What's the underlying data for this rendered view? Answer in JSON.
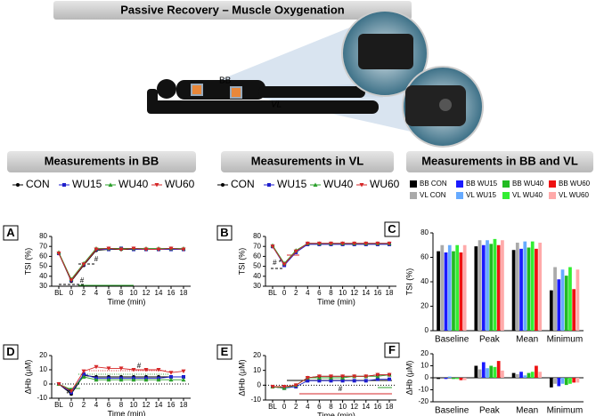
{
  "header": {
    "title": "Passive Recovery – Muscle Oxygenation",
    "bb_label": "BB",
    "vl_label": "VL",
    "sections": [
      "Measurements in BB",
      "Measurements in VL",
      "Measurements in BB and VL"
    ]
  },
  "chart_data": [
    {
      "type": "line",
      "panel": "A",
      "ylabel": "TSI (%)",
      "xlabel": "Time (min)",
      "categories": [
        "BL",
        "0",
        "2",
        "4",
        "6",
        "8",
        "10",
        "12",
        "14",
        "16",
        "18"
      ],
      "ylim": [
        30,
        80
      ],
      "yticks": [
        30,
        40,
        50,
        60,
        70,
        80
      ],
      "annotations": [
        "#",
        "#"
      ],
      "series": [
        {
          "name": "CON",
          "color": "#000000",
          "values": [
            63,
            35,
            51,
            66,
            67,
            67,
            67,
            67,
            67,
            67,
            67
          ]
        },
        {
          "name": "WU15",
          "color": "#1f1fcc",
          "values": [
            63,
            36,
            52,
            67,
            67,
            68,
            67,
            67,
            67,
            67,
            67
          ]
        },
        {
          "name": "WU40",
          "color": "#2ca02c",
          "values": [
            64,
            37,
            53,
            68,
            68,
            68,
            68,
            68,
            68,
            68,
            68
          ]
        },
        {
          "name": "WU60",
          "color": "#d62728",
          "values": [
            63,
            36,
            52,
            67,
            68,
            67,
            68,
            67,
            67,
            68,
            67
          ]
        }
      ]
    },
    {
      "type": "line",
      "panel": "B",
      "ylabel": "TSI (%)",
      "xlabel": "Time (min)",
      "categories": [
        "BL",
        "0",
        "2",
        "4",
        "6",
        "8",
        "10",
        "12",
        "14",
        "16",
        "18"
      ],
      "ylim": [
        30,
        80
      ],
      "yticks": [
        30,
        40,
        50,
        60,
        70,
        80
      ],
      "annotations": [
        "# *"
      ],
      "series": [
        {
          "name": "CON",
          "color": "#000000",
          "values": [
            70,
            52,
            65,
            73,
            73,
            73,
            73,
            73,
            73,
            73,
            73
          ]
        },
        {
          "name": "WU15",
          "color": "#1f1fcc",
          "values": [
            70,
            51,
            64,
            72,
            72,
            72,
            72,
            72,
            72,
            72,
            72
          ]
        },
        {
          "name": "WU40",
          "color": "#2ca02c",
          "values": [
            71,
            53,
            66,
            73,
            73,
            73,
            73,
            73,
            73,
            73,
            73
          ]
        },
        {
          "name": "WU60",
          "color": "#d62728",
          "values": [
            70,
            52,
            65,
            73,
            73,
            73,
            73,
            73,
            73,
            73,
            73
          ]
        }
      ]
    },
    {
      "type": "bar",
      "panel": "C",
      "ylabel": "TSI (%)",
      "categories": [
        "Baseline",
        "Peak",
        "Mean",
        "Minimum"
      ],
      "ylim": [
        0,
        80
      ],
      "yticks": [
        0,
        20,
        40,
        60,
        80
      ],
      "series": [
        {
          "name": "BB CON",
          "color": "#000000",
          "values": [
            65,
            69,
            66,
            33
          ]
        },
        {
          "name": "BB WU15",
          "color": "#1a1aff",
          "values": [
            64,
            70,
            67,
            42
          ]
        },
        {
          "name": "BB WU40",
          "color": "#22bb22",
          "values": [
            65,
            71,
            68,
            45
          ]
        },
        {
          "name": "BB WU60",
          "color": "#ee1111",
          "values": [
            64,
            70,
            67,
            34
          ]
        },
        {
          "name": "VL CON",
          "color": "#aaaaaa",
          "values": [
            70,
            74,
            72,
            52
          ]
        },
        {
          "name": "VL WU15",
          "color": "#66aaff",
          "values": [
            70,
            74,
            73,
            50
          ]
        },
        {
          "name": "VL WU40",
          "color": "#33ee33",
          "values": [
            70,
            75,
            73,
            52
          ]
        },
        {
          "name": "VL WU60",
          "color": "#ffaaaa",
          "values": [
            70,
            74,
            72,
            50
          ]
        }
      ]
    },
    {
      "type": "line",
      "panel": "D",
      "ylabel": "ΔHb (μM)",
      "xlabel": "Time (min)",
      "categories": [
        "BL",
        "0",
        "2",
        "4",
        "6",
        "8",
        "10",
        "12",
        "14",
        "16",
        "18"
      ],
      "ylim": [
        -10,
        20
      ],
      "yticks": [
        -10,
        0,
        10,
        20
      ],
      "annotations": [
        "#",
        "#"
      ],
      "series": [
        {
          "color": "#000000",
          "values": [
            0,
            -7,
            6,
            5,
            5,
            5,
            5,
            5,
            5,
            5,
            5
          ]
        },
        {
          "color": "#1f1fcc",
          "values": [
            0,
            -6,
            7,
            4,
            4,
            4,
            4,
            4,
            4,
            5,
            5
          ]
        },
        {
          "color": "#2ca02c",
          "values": [
            0,
            -4,
            5,
            3,
            3,
            3,
            3,
            3,
            3,
            3,
            3
          ]
        },
        {
          "color": "#d62728",
          "values": [
            0,
            -5,
            9,
            12,
            11,
            11,
            10,
            10,
            10,
            8,
            9
          ]
        }
      ]
    },
    {
      "type": "line",
      "panel": "E",
      "ylabel": "ΔtHb (μM)",
      "xlabel": "Time (min)",
      "categories": [
        "BL",
        "0",
        "2",
        "4",
        "6",
        "8",
        "10",
        "12",
        "14",
        "16",
        "18"
      ],
      "ylim": [
        -10,
        20
      ],
      "yticks": [
        -10,
        0,
        10,
        20
      ],
      "annotations": [
        "#"
      ],
      "series": [
        {
          "color": "#000000",
          "values": [
            -1,
            -2,
            0,
            5,
            6,
            6,
            6,
            6,
            6,
            7,
            7
          ]
        },
        {
          "color": "#1f1fcc",
          "values": [
            -1,
            -2,
            -1,
            3,
            3,
            3,
            3,
            3,
            3,
            4,
            4
          ]
        },
        {
          "color": "#2ca02c",
          "values": [
            -1,
            -2,
            0,
            5,
            5,
            5,
            5,
            6,
            6,
            6,
            7
          ]
        },
        {
          "color": "#d62728",
          "values": [
            -1,
            -1,
            0,
            5,
            6,
            6,
            6,
            6,
            6,
            7,
            7
          ]
        }
      ]
    },
    {
      "type": "bar",
      "panel": "F",
      "ylabel": "ΔHb (μM)",
      "categories": [
        "Baseline",
        "Peak",
        "Mean",
        "Minimum"
      ],
      "ylim": [
        -20,
        20
      ],
      "yticks": [
        -20,
        -10,
        0,
        10,
        20
      ],
      "series": [
        {
          "color": "#000000",
          "values": [
            -1,
            10,
            4,
            -8
          ]
        },
        {
          "color": "#1a1aff",
          "values": [
            -1,
            13,
            5,
            -7
          ]
        },
        {
          "color": "#22bb22",
          "values": [
            -1,
            10,
            4,
            -6
          ]
        },
        {
          "color": "#ee1111",
          "values": [
            -2,
            14,
            10,
            -4
          ]
        },
        {
          "color": "#aaaaaa",
          "values": [
            0,
            7,
            3,
            -5
          ]
        },
        {
          "color": "#66aaff",
          "values": [
            1,
            8,
            2,
            -5
          ]
        },
        {
          "color": "#33ee33",
          "values": [
            -1,
            9,
            5,
            -5
          ]
        },
        {
          "color": "#ffaaaa",
          "values": [
            -2,
            6,
            5,
            -4
          ]
        }
      ]
    }
  ]
}
